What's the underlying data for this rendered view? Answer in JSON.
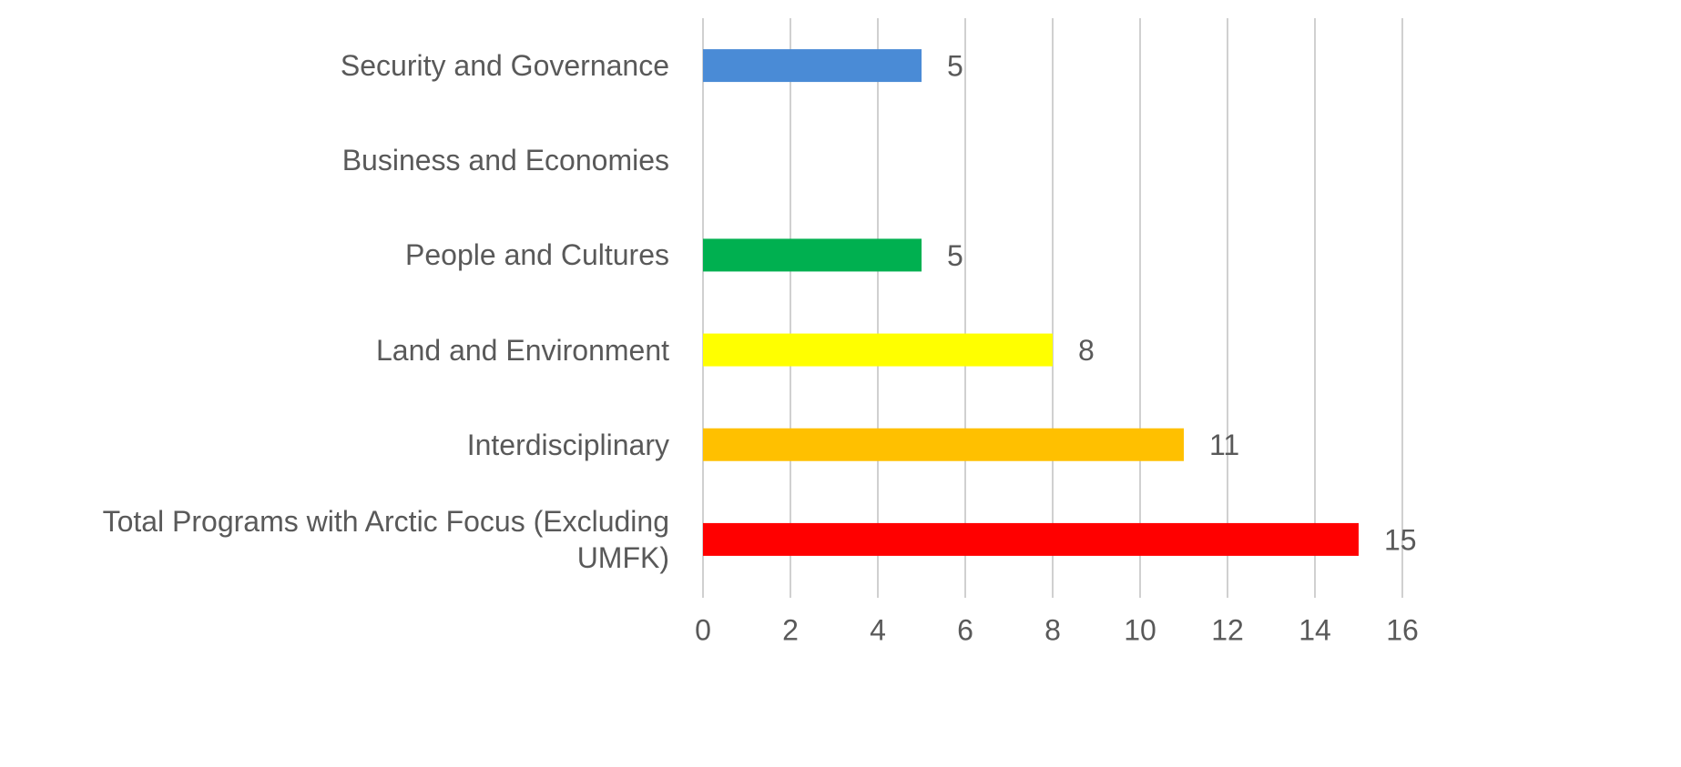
{
  "chart_data": {
    "type": "hbar",
    "categories": [
      "Security and Governance",
      "Business and Economies",
      "People and Cultures",
      "Land and Environment",
      "Interdisciplinary",
      "Total Programs with Arctic Focus (Excluding UMFK)"
    ],
    "values": [
      5,
      null,
      5,
      8,
      11,
      15
    ],
    "colors": [
      "#4a8bd6",
      "#7f7f7f",
      "#00b050",
      "#ffff00",
      "#ffc000",
      "#ff0000"
    ],
    "xlim": [
      0,
      16
    ],
    "xticks": [
      0,
      2,
      4,
      6,
      8,
      10,
      12,
      14,
      16
    ],
    "grid": true
  }
}
